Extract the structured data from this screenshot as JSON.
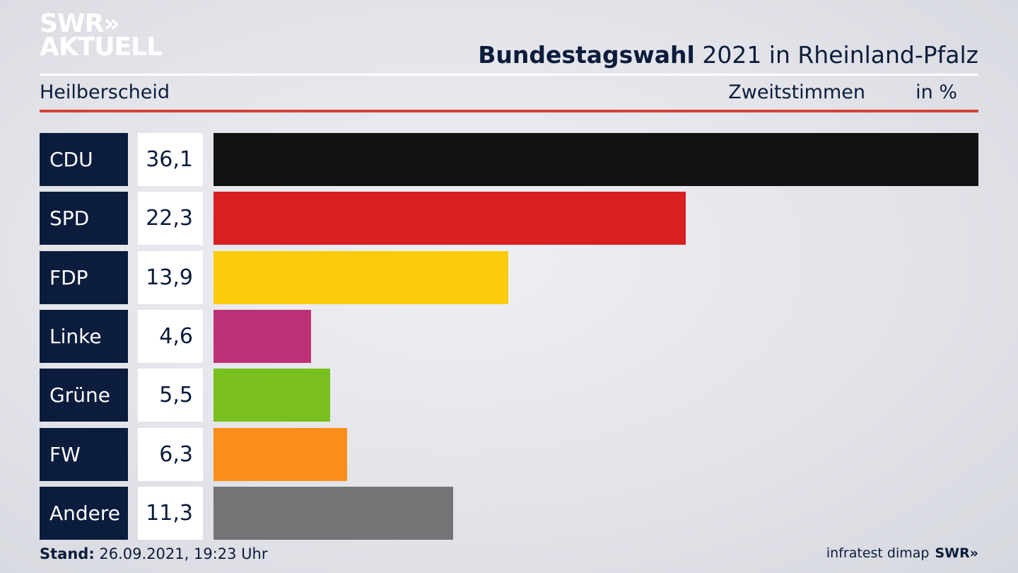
{
  "brand": {
    "line1": "SWR»",
    "line2": "AKTUELL"
  },
  "header": {
    "title_bold": "Bundestagswahl",
    "title_rest": " 2021 in Rheinland-Pfalz",
    "region": "Heilberscheid",
    "measure": "Zweitstimmen",
    "unit": "in %"
  },
  "chart_data": {
    "type": "bar",
    "orientation": "horizontal",
    "categories": [
      "CDU",
      "SPD",
      "FDP",
      "Linke",
      "Grüne",
      "FW",
      "Andere"
    ],
    "values": [
      36.1,
      22.3,
      13.9,
      4.6,
      5.5,
      6.3,
      11.3
    ],
    "value_labels": [
      "36,1",
      "22,3",
      "13,9",
      "4,6",
      "5,5",
      "6,3",
      "11,3"
    ],
    "colors": [
      "#121212",
      "#d7201f",
      "#fecb0a",
      "#be3075",
      "#79bf1f",
      "#fd8d1a",
      "#747476"
    ],
    "unit": "%"
  },
  "footer": {
    "stand_label": "Stand:",
    "stand_value": " 26.09.2021, 19:23 Uhr",
    "source": "infratest dimap",
    "logo": "SWR»"
  }
}
